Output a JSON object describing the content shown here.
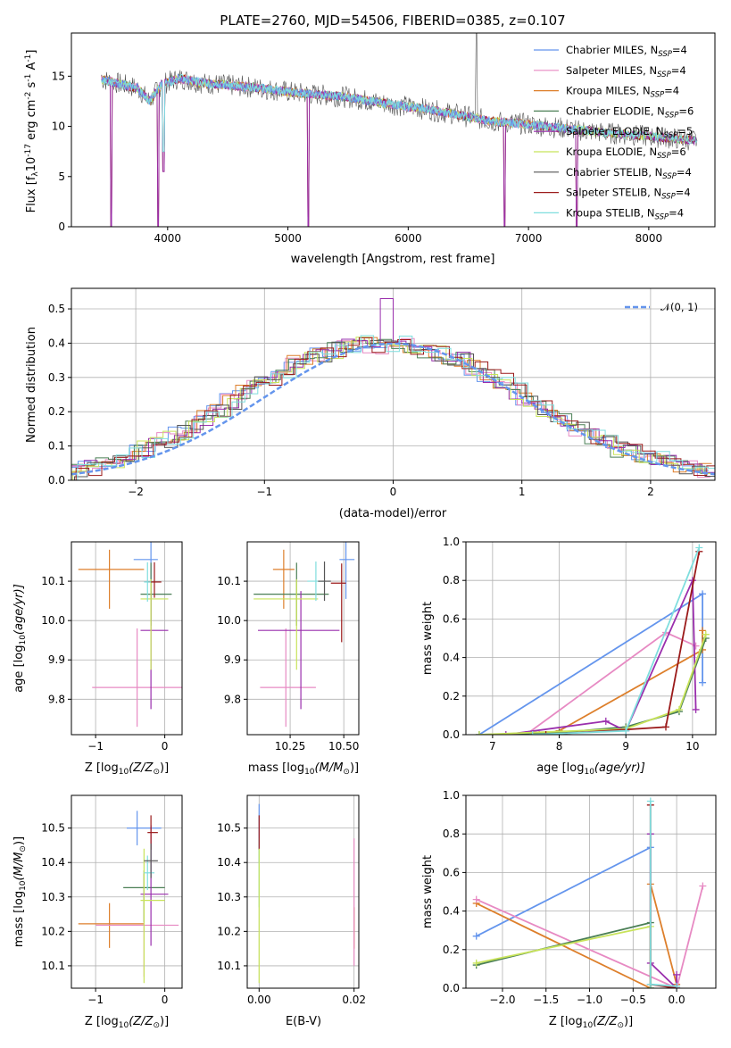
{
  "title": "PLATE=2760, MJD=54506, FIBERID=0385, z=0.107",
  "colors": {
    "Chabrier MILES": "#6495ed",
    "Salpeter MILES": "#e78ac3",
    "Kroupa MILES": "#dd7f2b",
    "Chabrier ELODIE": "#4a7f55",
    "Salpeter ELODIE": "#9a2fad",
    "Kroupa ELODIE": "#c8e35a",
    "Chabrier STELIB": "#555555",
    "Salpeter STELIB": "#9b1a1a",
    "Kroupa STELIB": "#7fdede"
  },
  "panels": {
    "spectrum": {
      "xlabel": "wavelength [Angstrom, rest frame]",
      "ylabel": "Flux [f",
      "ylabel_sub": "λ",
      "ylabel_mid": "10",
      "ylabel_sup1": "-17",
      "ylabel_mid2": " erg cm",
      "ylabel_sup2": "-2",
      "ylabel_mid3": " s",
      "ylabel_sup3": "-1",
      "ylabel_end": " A",
      "ylabel_sup4": "-1",
      "ylabel_close": "]",
      "xticks": [
        "4000",
        "5000",
        "6000",
        "7000",
        "8000"
      ],
      "yticks": [
        "0",
        "5",
        "10",
        "15"
      ],
      "legend": [
        {
          "label": "Chabrier MILES, N",
          "sub": "SSP",
          "eq": "=4",
          "color": "#6495ed"
        },
        {
          "label": "Salpeter MILES, N",
          "sub": "SSP",
          "eq": "=4",
          "color": "#e78ac3"
        },
        {
          "label": "Kroupa MILES, N",
          "sub": "SSP",
          "eq": "=4",
          "color": "#dd7f2b"
        },
        {
          "label": "Chabrier ELODIE, N",
          "sub": "SSP",
          "eq": "=6",
          "color": "#4a7f55"
        },
        {
          "label": "Salpeter ELODIE, N",
          "sub": "SSP",
          "eq": "=5",
          "color": "#9a2fad"
        },
        {
          "label": "Kroupa ELODIE, N",
          "sub": "SSP",
          "eq": "=6",
          "color": "#c8e35a"
        },
        {
          "label": "Chabrier STELIB, N",
          "sub": "SSP",
          "eq": "=4",
          "color": "#555555"
        },
        {
          "label": "Salpeter STELIB, N",
          "sub": "SSP",
          "eq": "=4",
          "color": "#9b1a1a"
        },
        {
          "label": "Kroupa STELIB, N",
          "sub": "SSP",
          "eq": "=4",
          "color": "#7fdede"
        }
      ]
    },
    "residuals": {
      "xlabel": "(data-model)/error",
      "ylabel": "Normed distribution",
      "xticks": [
        "−2",
        "−1",
        "0",
        "1",
        "2"
      ],
      "yticks": [
        "0.0",
        "0.1",
        "0.2",
        "0.3",
        "0.4",
        "0.5"
      ],
      "legend_label": "𝒩(0, 1)"
    },
    "age_Z": {
      "xlabel": "Z [log",
      "xlabel_sub": "10",
      "xlabel_rest": "(Z/Z",
      "xlabel_sub2": "⊙",
      "xlabel_close": ")]",
      "ylabel": "age  [log",
      "ylabel_sub": "10",
      "ylabel_rest": "(age/yr)]",
      "xticks": [
        "−1",
        "0"
      ],
      "yticks": [
        "9.8",
        "9.9",
        "10.0",
        "10.1"
      ]
    },
    "age_mass": {
      "xlabel": "mass [log",
      "xlabel_sub": "10",
      "xlabel_rest": "(M/M",
      "xlabel_sub2": "⊙",
      "xlabel_close": ")]",
      "xticks": [
        "10.25",
        "10.50"
      ],
      "yticks": [
        "9.8",
        "9.9",
        "10.0",
        "10.1"
      ]
    },
    "weight_age": {
      "xlabel": "age  [log",
      "xlabel_sub": "10",
      "xlabel_rest": "(age/yr)]",
      "ylabel": "mass weight",
      "xticks": [
        "7",
        "8",
        "9",
        "10"
      ],
      "yticks": [
        "0.0",
        "0.2",
        "0.4",
        "0.6",
        "0.8",
        "1.0"
      ]
    },
    "mass_Z": {
      "xlabel": "Z [log",
      "xlabel_sub": "10",
      "xlabel_rest": "(Z/Z",
      "xlabel_sub2": "⊙",
      "xlabel_close": ")]",
      "ylabel": "mass [log",
      "ylabel_sub": "10",
      "ylabel_rest": "(M/M",
      "ylabel_sub2": "⊙",
      "ylabel_close": ")]",
      "xticks": [
        "−1",
        "0"
      ],
      "yticks": [
        "10.1",
        "10.2",
        "10.3",
        "10.4",
        "10.5"
      ]
    },
    "mass_ebv": {
      "xlabel": "E(B-V)",
      "xticks": [
        "0.00",
        "0.02"
      ],
      "yticks": [
        "10.1",
        "10.2",
        "10.3",
        "10.4",
        "10.5"
      ]
    },
    "weight_Z": {
      "xlabel": "Z [log",
      "xlabel_sub": "10",
      "xlabel_rest": "(Z/Z",
      "xlabel_sub2": "⊙",
      "xlabel_close": ")]",
      "ylabel": "mass weight",
      "xticks": [
        "−2.0",
        "−1.5",
        "−1.0",
        "−0.5",
        "0.0"
      ],
      "yticks": [
        "0.0",
        "0.2",
        "0.4",
        "0.6",
        "0.8",
        "1.0"
      ]
    }
  },
  "chart_data": [
    {
      "type": "line",
      "name": "spectrum",
      "xlim": [
        3200,
        8550
      ],
      "ylim": [
        0,
        19.3
      ],
      "series_envelope": {
        "x": [
          3450,
          3550,
          3650,
          3750,
          3850,
          3950,
          4100,
          4300,
          4500,
          4700,
          4900,
          5100,
          5300,
          5500,
          5800,
          6100,
          6400,
          6700,
          7000,
          7300,
          7600,
          8000,
          8400
        ],
        "y": [
          14.7,
          14.4,
          14.1,
          13.8,
          12.5,
          14.2,
          14.8,
          14.3,
          14.1,
          13.9,
          13.6,
          13.3,
          13.1,
          12.9,
          12.3,
          11.8,
          11.2,
          10.5,
          10.2,
          9.8,
          9.4,
          9.0,
          8.6
        ]
      },
      "absorption_lines": [
        {
          "x": 3530,
          "min": 0
        },
        {
          "x": 3920,
          "min": 0
        },
        {
          "x": 3965,
          "min": 5.5
        },
        {
          "x": 5170,
          "min": 0
        },
        {
          "x": 6800,
          "min": 0
        },
        {
          "x": 7400,
          "min": 0
        }
      ],
      "emission_line": {
        "x": 6565,
        "max": 19.3
      }
    },
    {
      "type": "bar",
      "name": "residual_histograms",
      "xlim": [
        -2.5,
        2.5
      ],
      "ylim": [
        0,
        0.56
      ],
      "bin_edges_start": -2.5,
      "bin_width": 0.1,
      "base_distribution": [
        0.03,
        0.035,
        0.05,
        0.06,
        0.07,
        0.09,
        0.1,
        0.12,
        0.14,
        0.16,
        0.18,
        0.2,
        0.23,
        0.26,
        0.28,
        0.3,
        0.32,
        0.34,
        0.36,
        0.37,
        0.38,
        0.39,
        0.4,
        0.395,
        0.39,
        0.4,
        0.39,
        0.38,
        0.37,
        0.36,
        0.35,
        0.33,
        0.31,
        0.29,
        0.26,
        0.24,
        0.21,
        0.19,
        0.17,
        0.15,
        0.13,
        0.11,
        0.09,
        0.08,
        0.07,
        0.06,
        0.05,
        0.04,
        0.035,
        0.03
      ],
      "normal_curve": {
        "mean": 0,
        "sigma": 1,
        "style": "dashed"
      }
    },
    {
      "type": "scatter",
      "name": "age_vs_Z",
      "xlim": [
        -1.35,
        0.25
      ],
      "ylim": [
        9.71,
        10.2
      ],
      "points": [
        {
          "series": "Chabrier MILES",
          "x": -0.2,
          "y": 10.155,
          "xerr": [
            0.25,
            0.1
          ],
          "yerr": [
            0.1,
            0.05
          ]
        },
        {
          "series": "Kroupa MILES",
          "x": -0.8,
          "y": 10.13,
          "xerr": [
            0.45,
            0.5
          ],
          "yerr": [
            0.1,
            0.05
          ]
        },
        {
          "series": "Salpeter MILES",
          "x": -0.4,
          "y": 9.83,
          "xerr": [
            0.65,
            0.7
          ],
          "yerr": [
            0.1,
            0.15
          ]
        },
        {
          "series": "Chabrier ELODIE",
          "x": -0.2,
          "y": 10.067,
          "xerr": [
            0.15,
            0.3
          ],
          "yerr": [
            0.08,
            0.08
          ]
        },
        {
          "series": "Salpeter ELODIE",
          "x": -0.2,
          "y": 9.975,
          "xerr": [
            0.15,
            0.25
          ],
          "yerr": [
            0.2,
            0.1
          ]
        },
        {
          "series": "Kroupa ELODIE",
          "x": -0.2,
          "y": 10.055,
          "xerr": [
            0.15,
            0.25
          ],
          "yerr": [
            0.18,
            0.05
          ]
        },
        {
          "series": "Salpeter STELIB",
          "x": -0.15,
          "y": 10.098,
          "xerr": [
            0.1,
            0.1
          ],
          "yerr": [
            0.04,
            0.05
          ]
        },
        {
          "series": "Kroupa STELIB",
          "x": -0.25,
          "y": 10.098,
          "xerr": [
            0.05,
            0.05
          ],
          "yerr": [
            0.05,
            0.05
          ]
        }
      ]
    },
    {
      "type": "scatter",
      "name": "age_vs_mass",
      "xlim": [
        10.05,
        10.57
      ],
      "ylim": [
        9.71,
        10.2
      ],
      "points": [
        {
          "series": "Chabrier MILES",
          "x": 10.51,
          "y": 10.155,
          "xerr": [
            0.03,
            0.04
          ],
          "yerr": [
            0.1,
            0.05
          ]
        },
        {
          "series": "Kroupa MILES",
          "x": 10.22,
          "y": 10.13,
          "xerr": [
            0.05,
            0.05
          ],
          "yerr": [
            0.1,
            0.05
          ]
        },
        {
          "series": "Salpeter MILES",
          "x": 10.23,
          "y": 9.83,
          "xerr": [
            0.12,
            0.14
          ],
          "yerr": [
            0.1,
            0.15
          ]
        },
        {
          "series": "Chabrier ELODIE",
          "x": 10.28,
          "y": 10.067,
          "xerr": [
            0.2,
            0.15
          ],
          "yerr": [
            0.08,
            0.08
          ]
        },
        {
          "series": "Salpeter ELODIE",
          "x": 10.3,
          "y": 9.975,
          "xerr": [
            0.2,
            0.18
          ],
          "yerr": [
            0.2,
            0.1
          ]
        },
        {
          "series": "Kroupa ELODIE",
          "x": 10.28,
          "y": 10.055,
          "xerr": [
            0.2,
            0.1
          ],
          "yerr": [
            0.18,
            0.05
          ]
        },
        {
          "series": "Salpeter STELIB",
          "x": 10.49,
          "y": 10.095,
          "xerr": [
            0.05,
            0.02
          ],
          "yerr": [
            0.15,
            0.05
          ]
        },
        {
          "series": "Kroupa STELIB",
          "x": 10.37,
          "y": 10.1,
          "xerr": [
            0.04,
            0.04
          ],
          "yerr": [
            0.05,
            0.05
          ]
        },
        {
          "series": "Chabrier STELIB",
          "x": 10.41,
          "y": 10.1,
          "xerr": [
            0.03,
            0.03
          ],
          "yerr": [
            0.05,
            0.05
          ]
        }
      ]
    },
    {
      "type": "line",
      "name": "weight_vs_age",
      "xlim": [
        6.6,
        10.35
      ],
      "ylim": [
        0,
        1
      ],
      "series": [
        {
          "series": "Chabrier MILES",
          "x": [
            6.8,
            10.15,
            10.15
          ],
          "y": [
            0.0,
            0.73,
            0.27
          ]
        },
        {
          "series": "Kroupa MILES",
          "x": [
            7.7,
            8.0,
            10.15,
            10.15
          ],
          "y": [
            0.0,
            0.02,
            0.44,
            0.54
          ]
        },
        {
          "series": "Salpeter MILES",
          "x": [
            7.5,
            9.6,
            10.05
          ],
          "y": [
            0.0,
            0.53,
            0.46
          ]
        },
        {
          "series": "Chabrier ELODIE",
          "x": [
            6.8,
            8.0,
            9.0,
            9.8,
            10.2
          ],
          "y": [
            0.0,
            0.01,
            0.04,
            0.12,
            0.5
          ]
        },
        {
          "series": "Salpeter ELODIE",
          "x": [
            7.2,
            8.7,
            9.0,
            10.0,
            10.05
          ],
          "y": [
            0.0,
            0.07,
            0.02,
            0.8,
            0.13
          ]
        },
        {
          "series": "Kroupa ELODIE",
          "x": [
            6.8,
            9.0,
            9.8,
            10.2
          ],
          "y": [
            0.0,
            0.03,
            0.13,
            0.52
          ]
        },
        {
          "series": "Salpeter STELIB",
          "x": [
            7.8,
            9.6,
            10.1
          ],
          "y": [
            0.0,
            0.04,
            0.95
          ]
        },
        {
          "series": "Kroupa STELIB",
          "x": [
            7.6,
            9.0,
            10.1
          ],
          "y": [
            0.0,
            0.02,
            0.97
          ]
        }
      ]
    },
    {
      "type": "scatter",
      "name": "mass_vs_Z",
      "xlim": [
        -1.35,
        0.25
      ],
      "ylim": [
        10.035,
        10.595
      ],
      "points": [
        {
          "series": "Chabrier MILES",
          "x": -0.4,
          "y": 10.5,
          "xerr": [
            0.15,
            0.35
          ],
          "yerr": [
            0.05,
            0.05
          ]
        },
        {
          "series": "Kroupa MILES",
          "x": -0.8,
          "y": 10.222,
          "xerr": [
            0.45,
            0.5
          ],
          "yerr": [
            0.07,
            0.06
          ]
        },
        {
          "series": "Salpeter MILES",
          "x": -0.3,
          "y": 10.218,
          "xerr": [
            0.7,
            0.5
          ],
          "yerr": [
            0.15,
            0.15
          ]
        },
        {
          "series": "Chabrier ELODIE",
          "x": -0.3,
          "y": 10.327,
          "xerr": [
            0.3,
            0.3
          ],
          "yerr": [
            0.1,
            0.05
          ]
        },
        {
          "series": "Salpeter ELODIE",
          "x": -0.2,
          "y": 10.308,
          "xerr": [
            0.15,
            0.25
          ],
          "yerr": [
            0.15,
            0.2
          ]
        },
        {
          "series": "Kroupa ELODIE",
          "x": -0.3,
          "y": 10.29,
          "xerr": [
            0.05,
            0.3
          ],
          "yerr": [
            0.24,
            0.15
          ]
        },
        {
          "series": "Salpeter STELIB",
          "x": -0.2,
          "y": 10.487,
          "xerr": [
            0.05,
            0.1
          ],
          "yerr": [
            0.05,
            0.05
          ]
        },
        {
          "series": "Kroupa STELIB",
          "x": -0.25,
          "y": 10.37,
          "xerr": [
            0.05,
            0.1
          ],
          "yerr": [
            0.05,
            0.05
          ]
        },
        {
          "series": "Chabrier STELIB",
          "x": -0.2,
          "y": 10.405,
          "xerr": [
            0.1,
            0.1
          ],
          "yerr": [
            0.05,
            0.05
          ]
        }
      ]
    },
    {
      "type": "scatter",
      "name": "mass_vs_ebv",
      "xlim": [
        -0.0025,
        0.021
      ],
      "ylim": [
        10.035,
        10.595
      ],
      "points": [
        {
          "series": "Chabrier MILES",
          "x": 0.0,
          "y": 10.5,
          "yerr": [
            0.1,
            0.07
          ]
        },
        {
          "series": "Kroupa STELIB",
          "x": 0.0,
          "y": 10.37,
          "yerr": [
            0.1,
            0.1
          ]
        },
        {
          "series": "Salpeter STELIB",
          "x": 0.0,
          "y": 10.487,
          "yerr": [
            0.05,
            0.05
          ]
        },
        {
          "series": "Kroupa ELODIE",
          "x": 0.0,
          "y": 10.29,
          "yerr": [
            0.24,
            0.15
          ]
        },
        {
          "series": "Kroupa MILES",
          "x": 0.02,
          "y": 10.2,
          "yerr": [
            0.05,
            0.07
          ]
        },
        {
          "series": "Salpeter MILES",
          "x": 0.02,
          "y": 10.3,
          "yerr": [
            0.2,
            0.17
          ]
        }
      ]
    },
    {
      "type": "line",
      "name": "weight_vs_Z",
      "xlim": [
        -2.42,
        0.45
      ],
      "ylim": [
        0,
        1
      ],
      "series": [
        {
          "series": "Chabrier MILES",
          "x": [
            -2.3,
            -0.3,
            -0.3
          ],
          "y": [
            0.27,
            0.73,
            0.0
          ]
        },
        {
          "series": "Kroupa MILES",
          "x": [
            -2.3,
            -0.3,
            -0.3,
            0.0
          ],
          "y": [
            0.44,
            0.0,
            0.54,
            0.02
          ]
        },
        {
          "series": "Salpeter MILES",
          "x": [
            -2.3,
            0.0,
            0.3
          ],
          "y": [
            0.46,
            0.0,
            0.53
          ]
        },
        {
          "series": "Chabrier ELODIE",
          "x": [
            -2.3,
            -0.3,
            -0.3
          ],
          "y": [
            0.12,
            0.34,
            0.0
          ]
        },
        {
          "series": "Salpeter ELODIE",
          "x": [
            -0.3,
            -0.3,
            0.0,
            0.0
          ],
          "y": [
            0.8,
            0.13,
            0.0,
            0.07
          ]
        },
        {
          "series": "Kroupa ELODIE",
          "x": [
            -2.3,
            -0.3,
            -0.3
          ],
          "y": [
            0.13,
            0.32,
            0.0
          ]
        },
        {
          "series": "Salpeter STELIB",
          "x": [
            -0.3,
            -0.3,
            0.0
          ],
          "y": [
            0.95,
            0.02,
            0.0
          ]
        },
        {
          "series": "Kroupa STELIB",
          "x": [
            -0.3,
            -0.3,
            0.0
          ],
          "y": [
            0.97,
            0.02,
            0.01
          ]
        }
      ]
    }
  ]
}
